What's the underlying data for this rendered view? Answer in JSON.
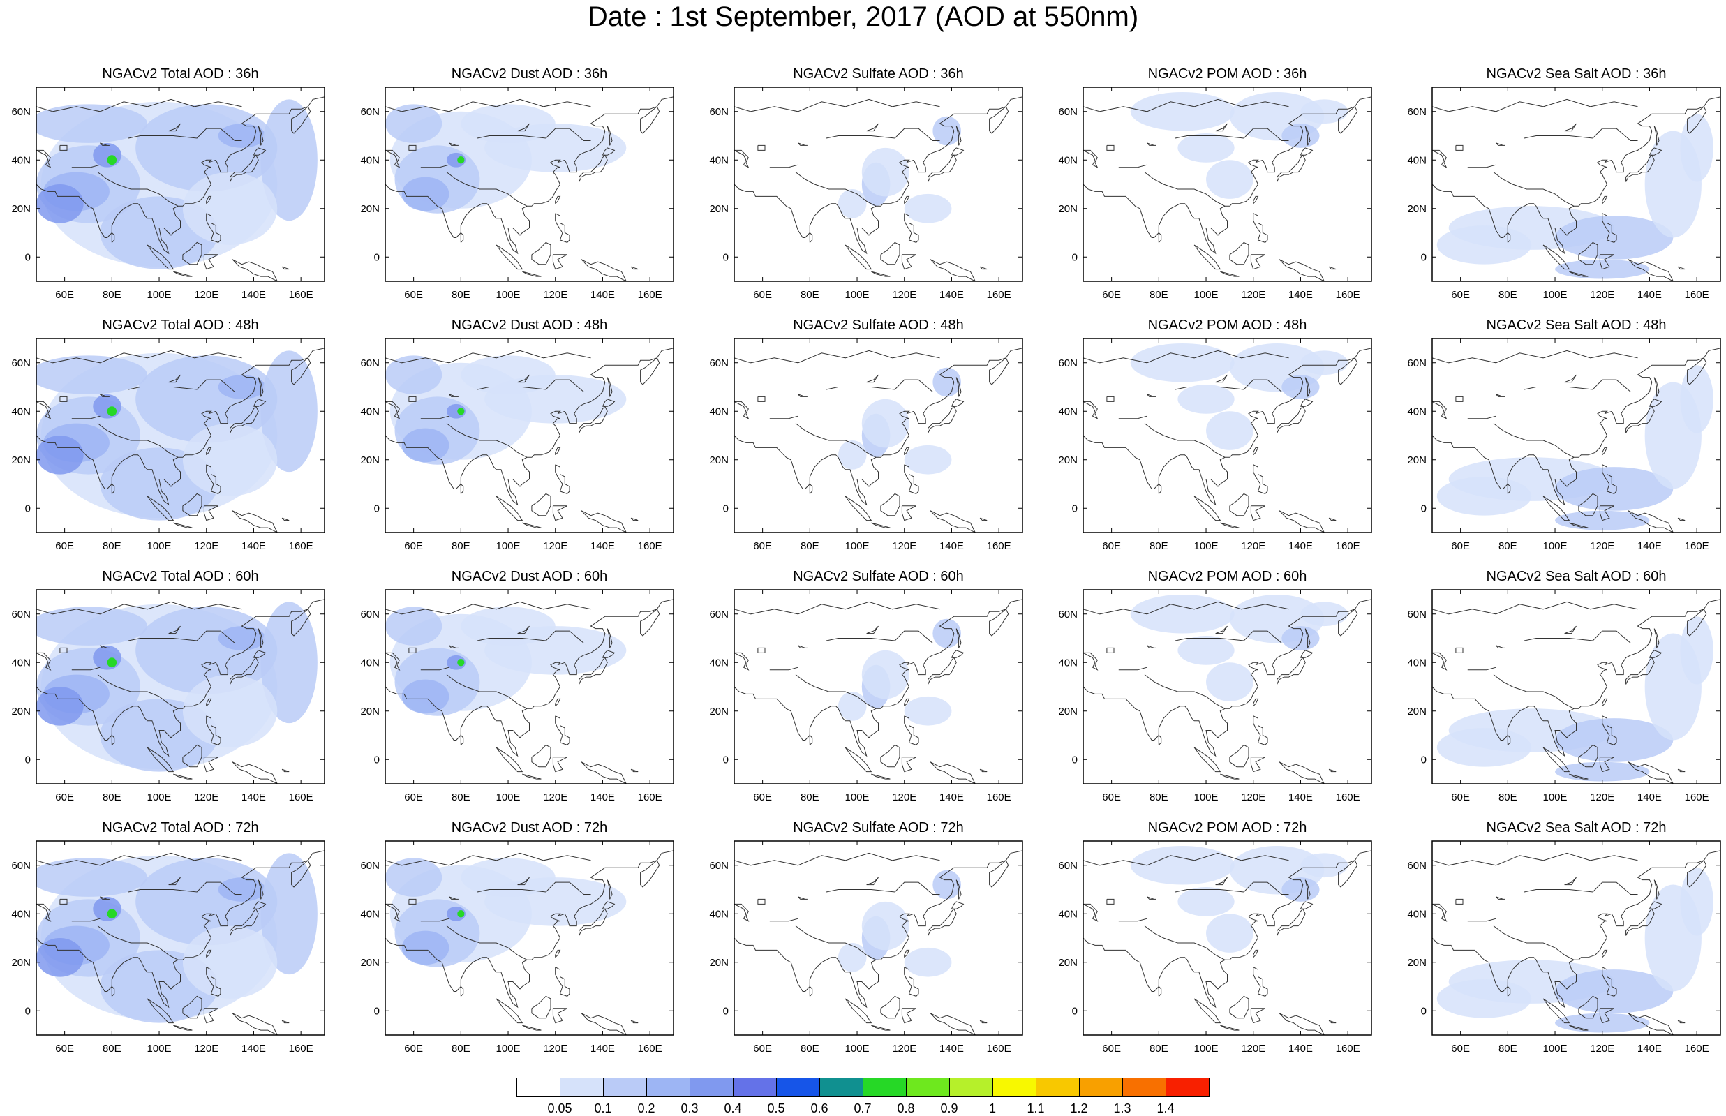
{
  "title": "Date : 1st September, 2017 (AOD at 550nm)",
  "axes": {
    "xticks": [
      "60E",
      "80E",
      "100E",
      "120E",
      "140E",
      "160E"
    ],
    "xvalues": [
      60,
      80,
      100,
      120,
      140,
      160
    ],
    "yticks": [
      "60N",
      "40N",
      "20N",
      "0"
    ],
    "yvalues": [
      60,
      40,
      20,
      0
    ],
    "lon_range": [
      48,
      170
    ],
    "lat_range": [
      -10,
      70
    ]
  },
  "columns": [
    "total",
    "dust",
    "sulfate",
    "pom",
    "seasalt"
  ],
  "panels": [
    [
      "NGACv2 Total AOD : 36h",
      "NGACv2 Dust AOD : 36h",
      "NGACv2 Sulfate AOD : 36h",
      "NGACv2 POM AOD : 36h",
      "NGACv2 Sea Salt AOD : 36h"
    ],
    [
      "NGACv2 Total AOD : 48h",
      "NGACv2 Dust AOD : 48h",
      "NGACv2 Sulfate AOD : 48h",
      "NGACv2 POM AOD : 48h",
      "NGACv2 Sea Salt AOD : 48h"
    ],
    [
      "NGACv2 Total AOD : 60h",
      "NGACv2 Dust AOD : 60h",
      "NGACv2 Sulfate AOD : 60h",
      "NGACv2 POM AOD : 60h",
      "NGACv2 Sea Salt AOD : 60h"
    ],
    [
      "NGACv2 Total AOD : 72h",
      "NGACv2 Dust AOD : 72h",
      "NGACv2 Sulfate AOD : 72h",
      "NGACv2 POM AOD : 72h",
      "NGACv2 Sea Salt  AOD : 72h"
    ]
  ],
  "colorbar": {
    "labels": [
      "0.05",
      "0.1",
      "0.2",
      "0.3",
      "0.4",
      "0.5",
      "0.6",
      "0.7",
      "0.8",
      "0.9",
      "1",
      "1.1",
      "1.2",
      "1.3",
      "1.4"
    ],
    "colors": [
      "#ffffff",
      "#d6e2fa",
      "#bacbf7",
      "#9db5f4",
      "#8099ef",
      "#6472e8",
      "#1655e8",
      "#109090",
      "#26d826",
      "#6ee81e",
      "#b6f02a",
      "#f8f800",
      "#f8c800",
      "#f8a000",
      "#f87000",
      "#f82000"
    ]
  },
  "fill_colors": {
    "light": "#d6e2fa",
    "mid": "#bacbf7",
    "dark": "#9db5f4",
    "deep": "#8099ef",
    "hot": "#26d826"
  }
}
